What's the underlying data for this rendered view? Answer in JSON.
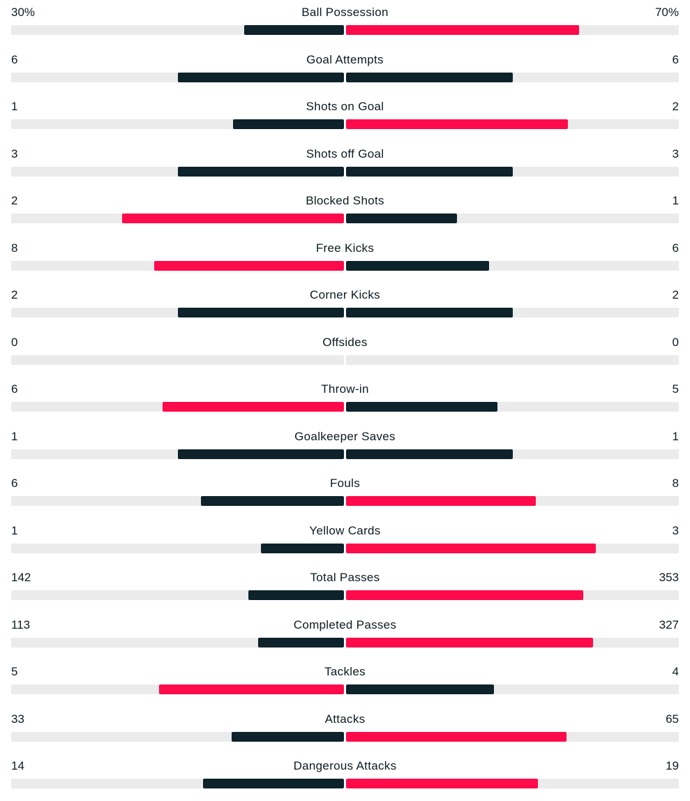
{
  "colors": {
    "leading": "#ff0a4a",
    "trailing": "#0d222a",
    "track": "#ebebeb"
  },
  "stats": [
    {
      "label": "Ball Possession",
      "home": "30%",
      "away": "70%",
      "home_share": 0.3,
      "away_share": 0.7,
      "home_leads": false,
      "away_leads": true
    },
    {
      "label": "Goal Attempts",
      "home": "6",
      "away": "6",
      "home_share": 0.5,
      "away_share": 0.5,
      "home_leads": false,
      "away_leads": false
    },
    {
      "label": "Shots on Goal",
      "home": "1",
      "away": "2",
      "home_share": 0.333,
      "away_share": 0.667,
      "home_leads": false,
      "away_leads": true
    },
    {
      "label": "Shots off Goal",
      "home": "3",
      "away": "3",
      "home_share": 0.5,
      "away_share": 0.5,
      "home_leads": false,
      "away_leads": false
    },
    {
      "label": "Blocked Shots",
      "home": "2",
      "away": "1",
      "home_share": 0.667,
      "away_share": 0.333,
      "home_leads": true,
      "away_leads": false
    },
    {
      "label": "Free Kicks",
      "home": "8",
      "away": "6",
      "home_share": 0.571,
      "away_share": 0.429,
      "home_leads": true,
      "away_leads": false
    },
    {
      "label": "Corner Kicks",
      "home": "2",
      "away": "2",
      "home_share": 0.5,
      "away_share": 0.5,
      "home_leads": false,
      "away_leads": false
    },
    {
      "label": "Offsides",
      "home": "0",
      "away": "0",
      "home_share": 0,
      "away_share": 0,
      "home_leads": false,
      "away_leads": false
    },
    {
      "label": "Throw-in",
      "home": "6",
      "away": "5",
      "home_share": 0.545,
      "away_share": 0.455,
      "home_leads": true,
      "away_leads": false
    },
    {
      "label": "Goalkeeper Saves",
      "home": "1",
      "away": "1",
      "home_share": 0.5,
      "away_share": 0.5,
      "home_leads": false,
      "away_leads": false
    },
    {
      "label": "Fouls",
      "home": "6",
      "away": "8",
      "home_share": 0.429,
      "away_share": 0.571,
      "home_leads": false,
      "away_leads": true
    },
    {
      "label": "Yellow Cards",
      "home": "1",
      "away": "3",
      "home_share": 0.25,
      "away_share": 0.75,
      "home_leads": false,
      "away_leads": true
    },
    {
      "label": "Total Passes",
      "home": "142",
      "away": "353",
      "home_share": 0.287,
      "away_share": 0.713,
      "home_leads": false,
      "away_leads": true
    },
    {
      "label": "Completed Passes",
      "home": "113",
      "away": "327",
      "home_share": 0.257,
      "away_share": 0.743,
      "home_leads": false,
      "away_leads": true
    },
    {
      "label": "Tackles",
      "home": "5",
      "away": "4",
      "home_share": 0.556,
      "away_share": 0.444,
      "home_leads": true,
      "away_leads": false
    },
    {
      "label": "Attacks",
      "home": "33",
      "away": "65",
      "home_share": 0.337,
      "away_share": 0.663,
      "home_leads": false,
      "away_leads": true
    },
    {
      "label": "Dangerous Attacks",
      "home": "14",
      "away": "19",
      "home_share": 0.424,
      "away_share": 0.576,
      "home_leads": false,
      "away_leads": true
    }
  ]
}
